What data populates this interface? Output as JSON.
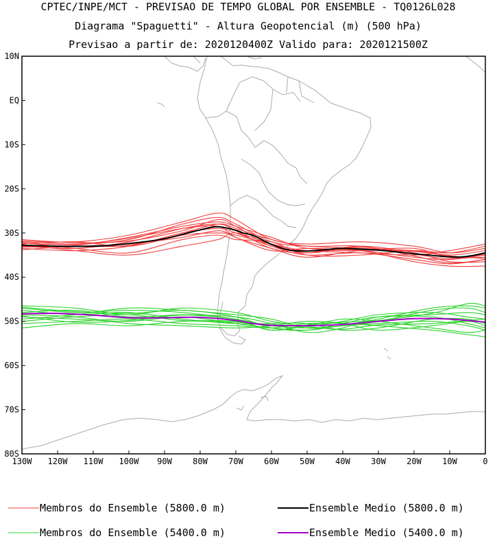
{
  "chart_data": {
    "type": "line",
    "title_lines": [
      "CPTEC/INPE/MCT - PREVISAO DE TEMPO GLOBAL POR ENSEMBLE - TQ0126L028",
      "Diagrama \"Spaguetti\" - Altura Geopotencial (m) (500 hPa)",
      "Previsao a partir de: 2020120400Z  Valido para: 2020121500Z"
    ],
    "xlim": [
      -130,
      0
    ],
    "ylim": [
      -80,
      10
    ],
    "x_ticks": [
      {
        "value": -130,
        "label": "130W"
      },
      {
        "value": -120,
        "label": "120W"
      },
      {
        "value": -110,
        "label": "110W"
      },
      {
        "value": -100,
        "label": "100W"
      },
      {
        "value": -90,
        "label": "90W"
      },
      {
        "value": -80,
        "label": "80W"
      },
      {
        "value": -70,
        "label": "70W"
      },
      {
        "value": -60,
        "label": "60W"
      },
      {
        "value": -50,
        "label": "50W"
      },
      {
        "value": -40,
        "label": "40W"
      },
      {
        "value": -30,
        "label": "30W"
      },
      {
        "value": -20,
        "label": "20W"
      },
      {
        "value": -10,
        "label": "10W"
      },
      {
        "value": 0,
        "label": "0"
      }
    ],
    "y_ticks": [
      {
        "value": 10,
        "label": "10N"
      },
      {
        "value": 0,
        "label": "EQ"
      },
      {
        "value": -10,
        "label": "10S"
      },
      {
        "value": -20,
        "label": "20S"
      },
      {
        "value": -30,
        "label": "30S"
      },
      {
        "value": -40,
        "label": "40S"
      },
      {
        "value": -50,
        "label": "50S"
      },
      {
        "value": -60,
        "label": "60S"
      },
      {
        "value": -70,
        "label": "70S"
      },
      {
        "value": -80,
        "label": "80S"
      }
    ],
    "grid": false,
    "legend_position": "bottom",
    "colors": {
      "members_5800": "#f03c3c",
      "mean_5800": "#000000",
      "members_5400": "#28d228",
      "mean_5400": "#a000c8",
      "coastline": "#aaaaaa"
    },
    "series": [
      {
        "name": "Ensemble Medio (5800.0 m)",
        "kind": "mean",
        "level": 5800,
        "x": [
          -130,
          -120,
          -110,
          -100,
          -90,
          -80,
          -75,
          -70,
          -68,
          -65,
          -60,
          -55,
          -50,
          -45,
          -40,
          -30,
          -20,
          -10,
          -5,
          0
        ],
        "y": [
          -32.8,
          -33.0,
          -33.0,
          -32.4,
          -31.3,
          -29.3,
          -28.6,
          -29.4,
          -30.0,
          -30.6,
          -32.6,
          -33.9,
          -34.1,
          -33.8,
          -33.5,
          -33.9,
          -34.7,
          -35.4,
          -35.3,
          -34.5
        ]
      },
      {
        "name": "Ensemble Medio (5400.0 m)",
        "kind": "mean",
        "level": 5400,
        "x": [
          -130,
          -120,
          -110,
          -100,
          -90,
          -80,
          -70,
          -65,
          -60,
          -50,
          -40,
          -30,
          -20,
          -10,
          0
        ],
        "y": [
          -48.3,
          -48.2,
          -48.6,
          -49.2,
          -49.2,
          -49.1,
          -49.8,
          -50.5,
          -50.9,
          -51.0,
          -50.7,
          -50.0,
          -49.4,
          -49.5,
          -50.2
        ]
      }
    ],
    "members": {
      "5800": [
        {
          "x": [
            -130,
            -115,
            -100,
            -85,
            -75,
            -70,
            -60,
            -50,
            -35,
            -20,
            -10,
            0
          ],
          "y": [
            -32.0,
            -32.5,
            -31.5,
            -28.0,
            -26.5,
            -28.0,
            -32.0,
            -33.0,
            -33.5,
            -34.0,
            -35.0,
            -34.0
          ]
        },
        {
          "x": [
            -130,
            -115,
            -100,
            -85,
            -75,
            -70,
            -60,
            -50,
            -35,
            -20,
            -10,
            0
          ],
          "y": [
            -33.5,
            -34.0,
            -33.0,
            -30.0,
            -29.0,
            -30.0,
            -33.0,
            -35.0,
            -34.5,
            -36.0,
            -37.0,
            -36.0
          ]
        },
        {
          "x": [
            -130,
            -115,
            -100,
            -85,
            -75,
            -70,
            -60,
            -50,
            -35,
            -20,
            -10,
            0
          ],
          "y": [
            -31.8,
            -32.0,
            -30.5,
            -27.5,
            -25.5,
            -27.0,
            -31.5,
            -32.5,
            -32.0,
            -33.0,
            -34.5,
            -33.5
          ]
        },
        {
          "x": [
            -130,
            -115,
            -100,
            -85,
            -75,
            -70,
            -60,
            -50,
            -35,
            -20,
            -10,
            0
          ],
          "y": [
            -33.0,
            -33.5,
            -32.0,
            -29.0,
            -28.0,
            -29.5,
            -33.5,
            -34.5,
            -33.0,
            -34.5,
            -36.5,
            -36.5
          ]
        },
        {
          "x": [
            -130,
            -115,
            -100,
            -85,
            -75,
            -70,
            -60,
            -50,
            -35,
            -20,
            -10,
            0
          ],
          "y": [
            -32.5,
            -32.0,
            -33.0,
            -30.5,
            -30.0,
            -30.5,
            -32.5,
            -34.0,
            -34.0,
            -35.5,
            -36.0,
            -35.0
          ]
        },
        {
          "x": [
            -130,
            -115,
            -100,
            -85,
            -75,
            -70,
            -60,
            -50,
            -35,
            -20,
            -10,
            0
          ],
          "y": [
            -33.8,
            -33.0,
            -32.5,
            -31.0,
            -29.5,
            -31.0,
            -34.0,
            -33.5,
            -33.8,
            -33.5,
            -35.5,
            -35.5
          ]
        },
        {
          "x": [
            -130,
            -115,
            -100,
            -85,
            -75,
            -70,
            -60,
            -50,
            -35,
            -20,
            -10,
            0
          ],
          "y": [
            -32.2,
            -33.5,
            -34.5,
            -31.5,
            -30.5,
            -31.5,
            -32.0,
            -35.0,
            -35.0,
            -34.0,
            -34.5,
            -33.0
          ]
        },
        {
          "x": [
            -130,
            -115,
            -100,
            -85,
            -75,
            -70,
            -60,
            -50,
            -35,
            -20,
            -10,
            0
          ],
          "y": [
            -33.2,
            -32.8,
            -31.0,
            -28.5,
            -27.5,
            -28.5,
            -31.0,
            -33.5,
            -34.0,
            -36.5,
            -37.5,
            -37.5
          ]
        },
        {
          "x": [
            -130,
            -115,
            -100,
            -85,
            -75,
            -70,
            -60,
            -50,
            -35,
            -20,
            -10,
            0
          ],
          "y": [
            -32.6,
            -34.0,
            -35.0,
            -33.0,
            -31.5,
            -30.0,
            -32.5,
            -34.5,
            -33.2,
            -34.8,
            -35.8,
            -34.8
          ]
        },
        {
          "x": [
            -130,
            -115,
            -100,
            -85,
            -75,
            -70,
            -60,
            -50,
            -35,
            -20,
            -10,
            0
          ],
          "y": [
            -31.5,
            -32.2,
            -31.8,
            -29.5,
            -27.0,
            -28.5,
            -33.0,
            -34.0,
            -34.5,
            -35.0,
            -34.0,
            -32.5
          ]
        },
        {
          "x": [
            -130,
            -115,
            -100,
            -85,
            -75,
            -70,
            -60,
            -50,
            -35,
            -20,
            -10,
            0
          ],
          "y": [
            -33.0,
            -33.0,
            -32.8,
            -30.0,
            -28.0,
            -29.0,
            -31.5,
            -33.0,
            -33.0,
            -35.2,
            -36.8,
            -36.0
          ]
        },
        {
          "x": [
            -130,
            -115,
            -100,
            -85,
            -75,
            -70,
            -60,
            -50,
            -35,
            -20,
            -10,
            0
          ],
          "y": [
            -32.4,
            -32.6,
            -31.2,
            -29.0,
            -28.5,
            -31.0,
            -33.5,
            -35.5,
            -34.0,
            -34.2,
            -35.2,
            -35.8
          ]
        }
      ],
      "5400": [
        {
          "x": [
            -130,
            -115,
            -100,
            -85,
            -70,
            -60,
            -50,
            -40,
            -30,
            -15,
            -5,
            0
          ],
          "y": [
            -47.0,
            -48.0,
            -47.5,
            -48.0,
            -49.5,
            -51.0,
            -51.5,
            -51.0,
            -49.5,
            -47.0,
            -46.5,
            -47.0
          ]
        },
        {
          "x": [
            -130,
            -115,
            -100,
            -85,
            -70,
            -60,
            -50,
            -40,
            -30,
            -15,
            -5,
            0
          ],
          "y": [
            -49.0,
            -49.5,
            -50.0,
            -49.0,
            -50.5,
            -51.5,
            -52.0,
            -51.0,
            -50.5,
            -50.0,
            -51.0,
            -52.0
          ]
        },
        {
          "x": [
            -130,
            -115,
            -100,
            -85,
            -70,
            -60,
            -50,
            -40,
            -30,
            -15,
            -5,
            0
          ],
          "y": [
            -46.5,
            -47.0,
            -48.5,
            -47.0,
            -48.0,
            -50.0,
            -51.0,
            -50.0,
            -48.5,
            -48.0,
            -49.0,
            -49.5
          ]
        },
        {
          "x": [
            -130,
            -115,
            -100,
            -85,
            -70,
            -60,
            -50,
            -40,
            -30,
            -15,
            -5,
            0
          ],
          "y": [
            -50.5,
            -50.0,
            -49.5,
            -50.5,
            -51.0,
            -51.5,
            -50.5,
            -50.5,
            -51.0,
            -52.0,
            -53.0,
            -53.5
          ]
        },
        {
          "x": [
            -130,
            -115,
            -100,
            -85,
            -70,
            -60,
            -50,
            -40,
            -30,
            -15,
            -5,
            0
          ],
          "y": [
            -48.0,
            -47.5,
            -49.0,
            -48.5,
            -49.0,
            -50.5,
            -52.5,
            -51.5,
            -49.0,
            -48.5,
            -48.0,
            -48.5
          ]
        },
        {
          "x": [
            -130,
            -115,
            -100,
            -85,
            -70,
            -60,
            -50,
            -40,
            -30,
            -15,
            -5,
            0
          ],
          "y": [
            -51.5,
            -50.5,
            -51.0,
            -50.0,
            -50.0,
            -52.0,
            -51.0,
            -49.5,
            -50.0,
            -51.5,
            -52.5,
            -52.0
          ]
        },
        {
          "x": [
            -130,
            -115,
            -100,
            -85,
            -70,
            -60,
            -50,
            -40,
            -30,
            -15,
            -5,
            0
          ],
          "y": [
            -47.5,
            -48.5,
            -48.0,
            -49.5,
            -50.5,
            -50.5,
            -50.5,
            -52.0,
            -51.5,
            -49.5,
            -49.5,
            -50.5
          ]
        },
        {
          "x": [
            -130,
            -115,
            -100,
            -85,
            -70,
            -60,
            -50,
            -40,
            -30,
            -15,
            -5,
            0
          ],
          "y": [
            -49.5,
            -48.5,
            -47.0,
            -47.5,
            -48.5,
            -49.5,
            -51.5,
            -51.0,
            -50.0,
            -47.5,
            -47.0,
            -48.0
          ]
        },
        {
          "x": [
            -130,
            -115,
            -100,
            -85,
            -70,
            -60,
            -50,
            -40,
            -30,
            -15,
            -5,
            0
          ],
          "y": [
            -48.5,
            -49.0,
            -50.5,
            -51.0,
            -51.5,
            -51.0,
            -50.0,
            -50.5,
            -52.0,
            -51.0,
            -50.0,
            -51.0
          ]
        },
        {
          "x": [
            -130,
            -115,
            -100,
            -85,
            -70,
            -60,
            -50,
            -40,
            -30,
            -15,
            -5,
            0
          ],
          "y": [
            -46.8,
            -47.8,
            -48.2,
            -47.5,
            -49.0,
            -51.5,
            -52.0,
            -50.5,
            -49.0,
            -49.0,
            -50.5,
            -51.5
          ]
        },
        {
          "x": [
            -130,
            -115,
            -100,
            -85,
            -70,
            -60,
            -50,
            -40,
            -30,
            -15,
            -5,
            0
          ],
          "y": [
            -50.0,
            -49.0,
            -48.5,
            -49.8,
            -50.2,
            -50.8,
            -51.2,
            -51.8,
            -50.8,
            -50.5,
            -49.8,
            -49.5
          ]
        },
        {
          "x": [
            -130,
            -115,
            -100,
            -85,
            -70,
            -60,
            -50,
            -40,
            -30,
            -15,
            -5,
            0
          ],
          "y": [
            -48.8,
            -50.2,
            -49.8,
            -48.6,
            -49.6,
            -52.0,
            -50.8,
            -50.2,
            -49.8,
            -48.2,
            -46.0,
            -46.5
          ]
        }
      ]
    },
    "legend": [
      {
        "label": "Membros do Ensemble (5800.0 m)",
        "color": "#f03c3c"
      },
      {
        "label": "Ensemble Medio (5800.0 m)",
        "color": "#000000"
      },
      {
        "label": "Membros do Ensemble (5400.0 m)",
        "color": "#28d228"
      },
      {
        "label": "Ensemble Medio (5400.0 m)",
        "color": "#a000c8"
      }
    ]
  }
}
